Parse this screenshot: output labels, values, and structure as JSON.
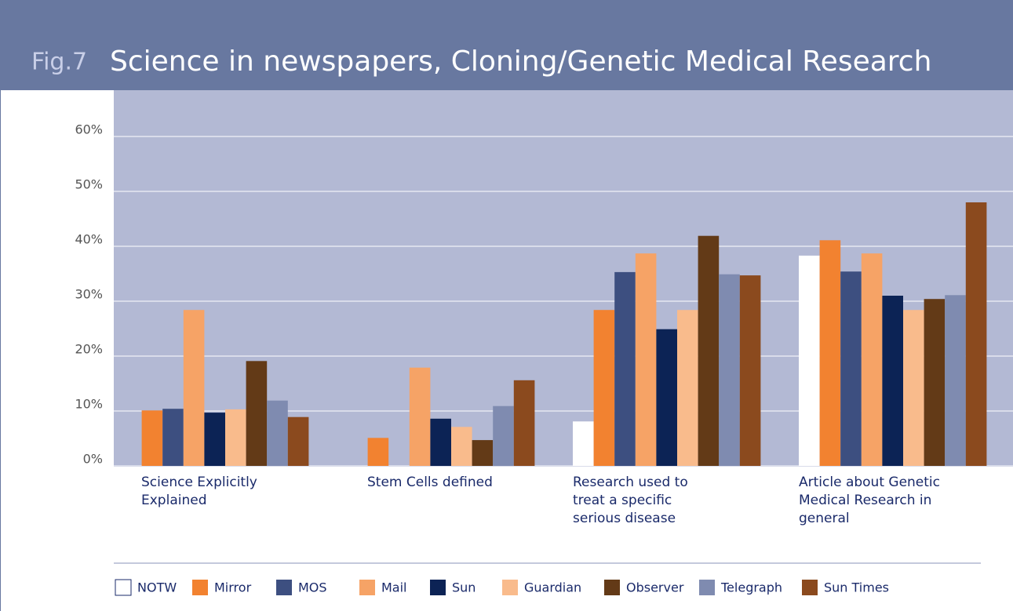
{
  "chart_data": {
    "type": "bar",
    "title_prefix": "Fig.7",
    "title": "Science in newspapers, Cloning/Genetic Medical Research",
    "categories": [
      "Science Explicitly Explained",
      "Stem Cells defined",
      "Research used to treat a specific serious disease",
      "Article about Genetic Medical Research in general"
    ],
    "series": [
      {
        "name": "NOTW",
        "color": "#ffffff",
        "values": [
          0,
          0,
          8.1,
          38.3
        ]
      },
      {
        "name": "Mirror",
        "color": "#f28230",
        "values": [
          10.1,
          5.1,
          28.4,
          41.1
        ]
      },
      {
        "name": "MOS",
        "color": "#3d4f80",
        "values": [
          10.4,
          0,
          35.3,
          35.4
        ]
      },
      {
        "name": "Mail",
        "color": "#f6a366",
        "values": [
          28.4,
          17.9,
          38.7,
          38.7
        ]
      },
      {
        "name": "Sun",
        "color": "#0c2355",
        "values": [
          9.7,
          8.6,
          24.9,
          31.0
        ]
      },
      {
        "name": "Guardian",
        "color": "#f9bb8c",
        "values": [
          10.3,
          7.1,
          28.4,
          28.4
        ]
      },
      {
        "name": "Observer",
        "color": "#633a17",
        "values": [
          19.1,
          4.7,
          41.9,
          30.4
        ]
      },
      {
        "name": "Telegraph",
        "color": "#7f8bb0",
        "values": [
          11.9,
          10.9,
          34.9,
          31.1
        ]
      },
      {
        "name": "Sun Times",
        "color": "#8b4a1e",
        "values": [
          8.9,
          15.6,
          34.7,
          48.0
        ]
      }
    ],
    "ylim": [
      0,
      60
    ],
    "yticks": [
      {
        "value": 0,
        "label": "0%"
      },
      {
        "value": 10,
        "label": "10%"
      },
      {
        "value": 20,
        "label": "20%"
      },
      {
        "value": 30,
        "label": "30%"
      },
      {
        "value": 40,
        "label": "40%"
      },
      {
        "value": 50,
        "label": "50%"
      },
      {
        "value": 60,
        "label": "60%"
      }
    ],
    "grid": true
  }
}
